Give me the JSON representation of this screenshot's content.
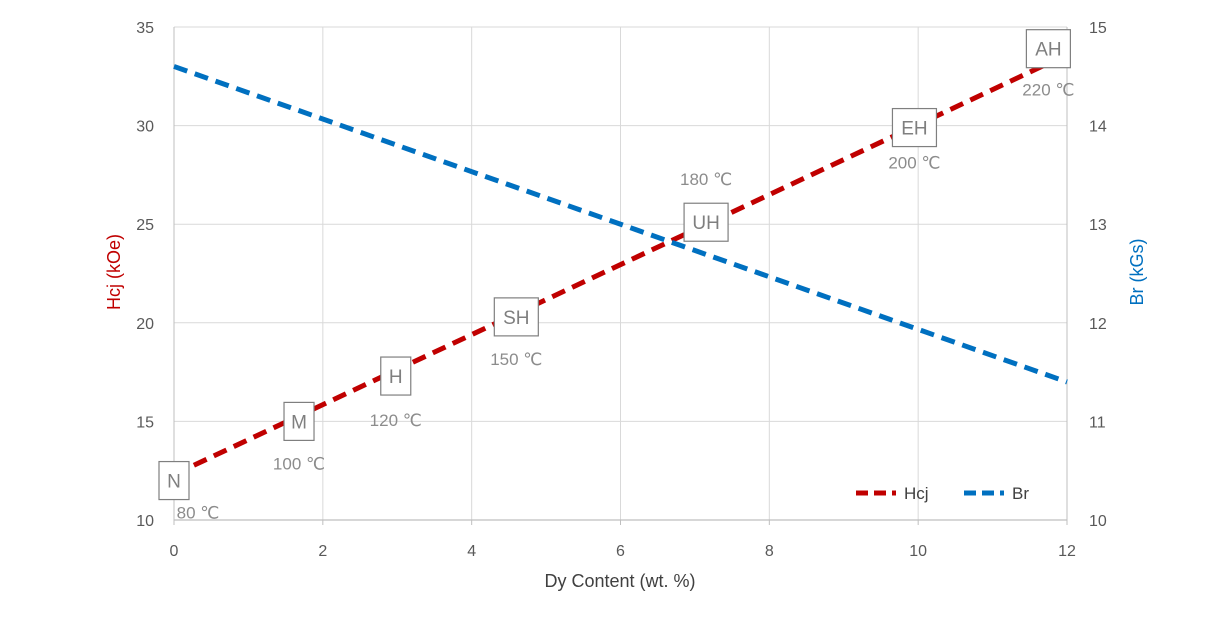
{
  "chart_data": {
    "type": "line",
    "xlabel": "Dy Content (wt. %)",
    "ylabel_left": "Hcj (kOe)",
    "ylabel_right": "Br (kGs)",
    "xlim": [
      0,
      12
    ],
    "ylim_left": [
      10,
      35
    ],
    "ylim_right": [
      10,
      15
    ],
    "x_ticks": [
      "0",
      "2",
      "4",
      "6",
      "8",
      "10",
      "12"
    ],
    "y_left_ticks": [
      "10",
      "15",
      "20",
      "25",
      "30",
      "35"
    ],
    "y_right_ticks": [
      "10",
      "11",
      "12",
      "13",
      "14",
      "15"
    ],
    "grid": true,
    "legend_position": "bottom-right",
    "series": [
      {
        "name": "Hcj",
        "axis": "left",
        "color": "#c00000",
        "style": "dashed",
        "x": [
          0,
          12
        ],
        "y": [
          12.3,
          33.6
        ]
      },
      {
        "name": "Br",
        "axis": "right",
        "color": "#0070c0",
        "style": "dashed",
        "x": [
          0,
          12
        ],
        "y": [
          14.6,
          11.4
        ]
      }
    ],
    "annotations": [
      {
        "grade": "N",
        "temp": "80 ℃",
        "x": 0.0,
        "y": 12.0
      },
      {
        "grade": "M",
        "temp": "100 ℃",
        "x": 1.68,
        "y": 15.0
      },
      {
        "grade": "H",
        "temp": "120 ℃",
        "x": 2.98,
        "y": 17.3
      },
      {
        "grade": "SH",
        "temp": "150 ℃",
        "x": 4.6,
        "y": 20.3
      },
      {
        "grade": "UH",
        "temp": "180 ℃",
        "x": 7.15,
        "y": 25.1
      },
      {
        "grade": "EH",
        "temp": "200 ℃",
        "x": 9.95,
        "y": 29.9
      },
      {
        "grade": "AH",
        "temp": "220 ℃",
        "x": 11.75,
        "y": 33.9
      }
    ]
  }
}
